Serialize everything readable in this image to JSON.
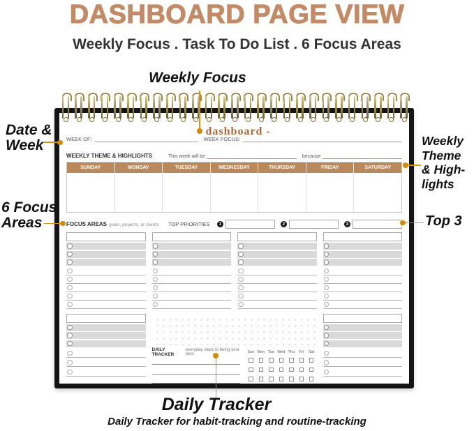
{
  "header": {
    "title": "DASHBOARD PAGE VIEW",
    "subtitle": "Weekly Focus . Task To Do List . 6 Focus Areas"
  },
  "annotations": {
    "weekly_focus": "Weekly Focus",
    "date_week": "Date &\nWeek",
    "six_focus_areas": "6 Focus\nAreas",
    "weekly_theme": "Weekly\nTheme\n& High-\nlights",
    "top_3": "Top 3",
    "daily_tracker_title": "Daily Tracker",
    "daily_tracker_caption": "Daily Tracker for habit-tracking and routine-tracking"
  },
  "planner": {
    "page_title": "- dashboard -",
    "week_of_label": "WEEK OF:",
    "week_focus_label": "WEEK FOCUS:",
    "weekly_theme_label": "WEEKLY THEME & HIGHLIGHTS",
    "this_week_label": "This week will be",
    "because_label": "because",
    "days": [
      "SUNDAY",
      "MONDAY",
      "TUESDAY",
      "WEDNESDAY",
      "THURSDAY",
      "FRIDAY",
      "SATURDAY"
    ],
    "focus_areas_label": "FOCUS AREAS",
    "focus_areas_hint": "goals, projects, or clients",
    "top_priorities_label": "TOP PRIORITIES",
    "priorities": [
      "1",
      "2",
      "3"
    ],
    "daily_tracker_label": "DAILY TRACKER",
    "daily_tracker_hint": "everyday steps to being your best",
    "tracker_days": [
      "Sun",
      "Mon",
      "Tue",
      "Wed",
      "Thu",
      "Fri",
      "Sat"
    ]
  },
  "colors": {
    "accent_title": "#c28a66",
    "day_header": "#b8895c",
    "dashboard_text": "#a8683a",
    "annotation": "#d9930f",
    "annotation_dot": "#d28b0a"
  }
}
